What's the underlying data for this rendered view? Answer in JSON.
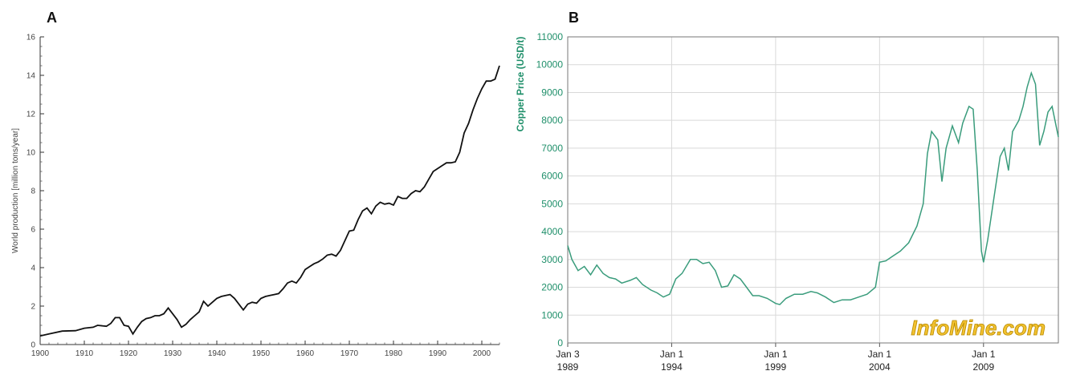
{
  "chart_data": [
    {
      "panel_label": "A",
      "type": "line",
      "xlabel": "",
      "ylabel": "World production [million tons/year]",
      "xlim": [
        1900,
        2004
      ],
      "ylim": [
        0,
        16
      ],
      "x_ticks": [
        "1900",
        "1910",
        "1920",
        "1930",
        "1940",
        "1950",
        "1960",
        "1970",
        "1980",
        "1990",
        "2000"
      ],
      "y_ticks": [
        "0",
        "2",
        "4",
        "6",
        "8",
        "10",
        "12",
        "14",
        "16"
      ],
      "line_color": "#111111",
      "series": [
        {
          "x": [
            1900,
            1902,
            1905,
            1908,
            1910,
            1912,
            1913,
            1915,
            1916,
            1917,
            1918,
            1919,
            1920,
            1921,
            1922,
            1923,
            1924,
            1925,
            1926,
            1927,
            1928,
            1929,
            1930,
            1931,
            1932,
            1933,
            1934,
            1935,
            1936,
            1937,
            1938,
            1939,
            1940,
            1941,
            1942,
            1943,
            1944,
            1945,
            1946,
            1947,
            1948,
            1949,
            1950,
            1951,
            1952,
            1953,
            1954,
            1955,
            1956,
            1957,
            1958,
            1959,
            1960,
            1961,
            1962,
            1963,
            1964,
            1965,
            1966,
            1967,
            1968,
            1969,
            1970,
            1971,
            1972,
            1973,
            1974,
            1975,
            1976,
            1977,
            1978,
            1979,
            1980,
            1981,
            1982,
            1983,
            1984,
            1985,
            1986,
            1987,
            1988,
            1989,
            1990,
            1991,
            1992,
            1993,
            1994,
            1995,
            1996,
            1997,
            1998,
            1999,
            2000,
            2001,
            2002,
            2003,
            2004
          ],
          "values": [
            0.45,
            0.55,
            0.7,
            0.72,
            0.85,
            0.9,
            1.0,
            0.95,
            1.1,
            1.4,
            1.4,
            1.0,
            0.95,
            0.55,
            0.9,
            1.2,
            1.35,
            1.4,
            1.5,
            1.5,
            1.6,
            1.9,
            1.6,
            1.3,
            0.9,
            1.05,
            1.3,
            1.5,
            1.7,
            2.25,
            2.0,
            2.2,
            2.4,
            2.5,
            2.55,
            2.6,
            2.4,
            2.1,
            1.8,
            2.1,
            2.2,
            2.15,
            2.4,
            2.5,
            2.55,
            2.6,
            2.65,
            2.9,
            3.2,
            3.3,
            3.2,
            3.5,
            3.9,
            4.05,
            4.2,
            4.3,
            4.45,
            4.65,
            4.7,
            4.6,
            4.9,
            5.4,
            5.9,
            5.95,
            6.5,
            6.95,
            7.1,
            6.8,
            7.2,
            7.4,
            7.3,
            7.35,
            7.25,
            7.7,
            7.6,
            7.6,
            7.85,
            8.0,
            7.95,
            8.2,
            8.6,
            9.0,
            9.15,
            9.3,
            9.45,
            9.45,
            9.5,
            10.0,
            11.0,
            11.5,
            12.2,
            12.8,
            13.3,
            13.7,
            13.7,
            13.8,
            14.5
          ]
        }
      ]
    },
    {
      "panel_label": "B",
      "type": "line",
      "xlabel": "",
      "ylabel": "Copper Price (USD/t)",
      "xlim": [
        1989.0,
        2012.6
      ],
      "ylim": [
        0,
        11000
      ],
      "x_ticks": [
        {
          "value": 1989.0,
          "line1": "Jan 3",
          "line2": "1989"
        },
        {
          "value": 1994.0,
          "line1": "Jan 1",
          "line2": "1994"
        },
        {
          "value": 1999.0,
          "line1": "Jan 1",
          "line2": "1999"
        },
        {
          "value": 2004.0,
          "line1": "Jan 1",
          "line2": "2004"
        },
        {
          "value": 2009.0,
          "line1": "Jan 1",
          "line2": "2009"
        }
      ],
      "y_ticks": [
        "0",
        "1000",
        "2000",
        "3000",
        "4000",
        "5000",
        "6000",
        "7000",
        "8000",
        "9000",
        "10000",
        "11000"
      ],
      "line_color": "#3a9c7c",
      "watermark": "InfoMine.com",
      "series": [
        {
          "x": [
            1989.0,
            1989.2,
            1989.5,
            1989.8,
            1990.1,
            1990.4,
            1990.7,
            1991.0,
            1991.3,
            1991.6,
            1992.0,
            1992.3,
            1992.6,
            1993.0,
            1993.3,
            1993.6,
            1993.9,
            1994.2,
            1994.5,
            1994.9,
            1995.2,
            1995.5,
            1995.8,
            1996.1,
            1996.4,
            1996.7,
            1997.0,
            1997.3,
            1997.6,
            1997.9,
            1998.2,
            1998.6,
            1999.0,
            1999.2,
            1999.5,
            1999.9,
            2000.3,
            2000.7,
            2001.0,
            2001.4,
            2001.8,
            2002.2,
            2002.6,
            2003.0,
            2003.4,
            2003.8,
            2004.0,
            2004.3,
            2004.6,
            2005.0,
            2005.4,
            2005.8,
            2006.1,
            2006.3,
            2006.5,
            2006.8,
            2007.0,
            2007.2,
            2007.5,
            2007.8,
            2008.0,
            2008.3,
            2008.5,
            2008.7,
            2008.9,
            2009.0,
            2009.2,
            2009.5,
            2009.8,
            2010.0,
            2010.2,
            2010.4,
            2010.7,
            2010.9,
            2011.1,
            2011.3,
            2011.5,
            2011.7,
            2011.9,
            2012.1,
            2012.3,
            2012.6
          ],
          "values": [
            3500,
            3000,
            2600,
            2750,
            2450,
            2800,
            2500,
            2350,
            2300,
            2150,
            2250,
            2350,
            2100,
            1900,
            1800,
            1650,
            1750,
            2300,
            2500,
            3000,
            3000,
            2850,
            2900,
            2600,
            2000,
            2050,
            2450,
            2300,
            2000,
            1700,
            1700,
            1600,
            1420,
            1380,
            1600,
            1750,
            1750,
            1850,
            1800,
            1650,
            1450,
            1550,
            1550,
            1650,
            1750,
            2000,
            2900,
            2950,
            3100,
            3300,
            3600,
            4200,
            5000,
            6800,
            7600,
            7300,
            5800,
            7000,
            7800,
            7200,
            7900,
            8500,
            8400,
            6200,
            3300,
            2900,
            3700,
            5200,
            6700,
            7000,
            6200,
            7600,
            8000,
            8500,
            9200,
            9700,
            9300,
            7100,
            7600,
            8300,
            8500,
            7400
          ]
        }
      ]
    }
  ]
}
